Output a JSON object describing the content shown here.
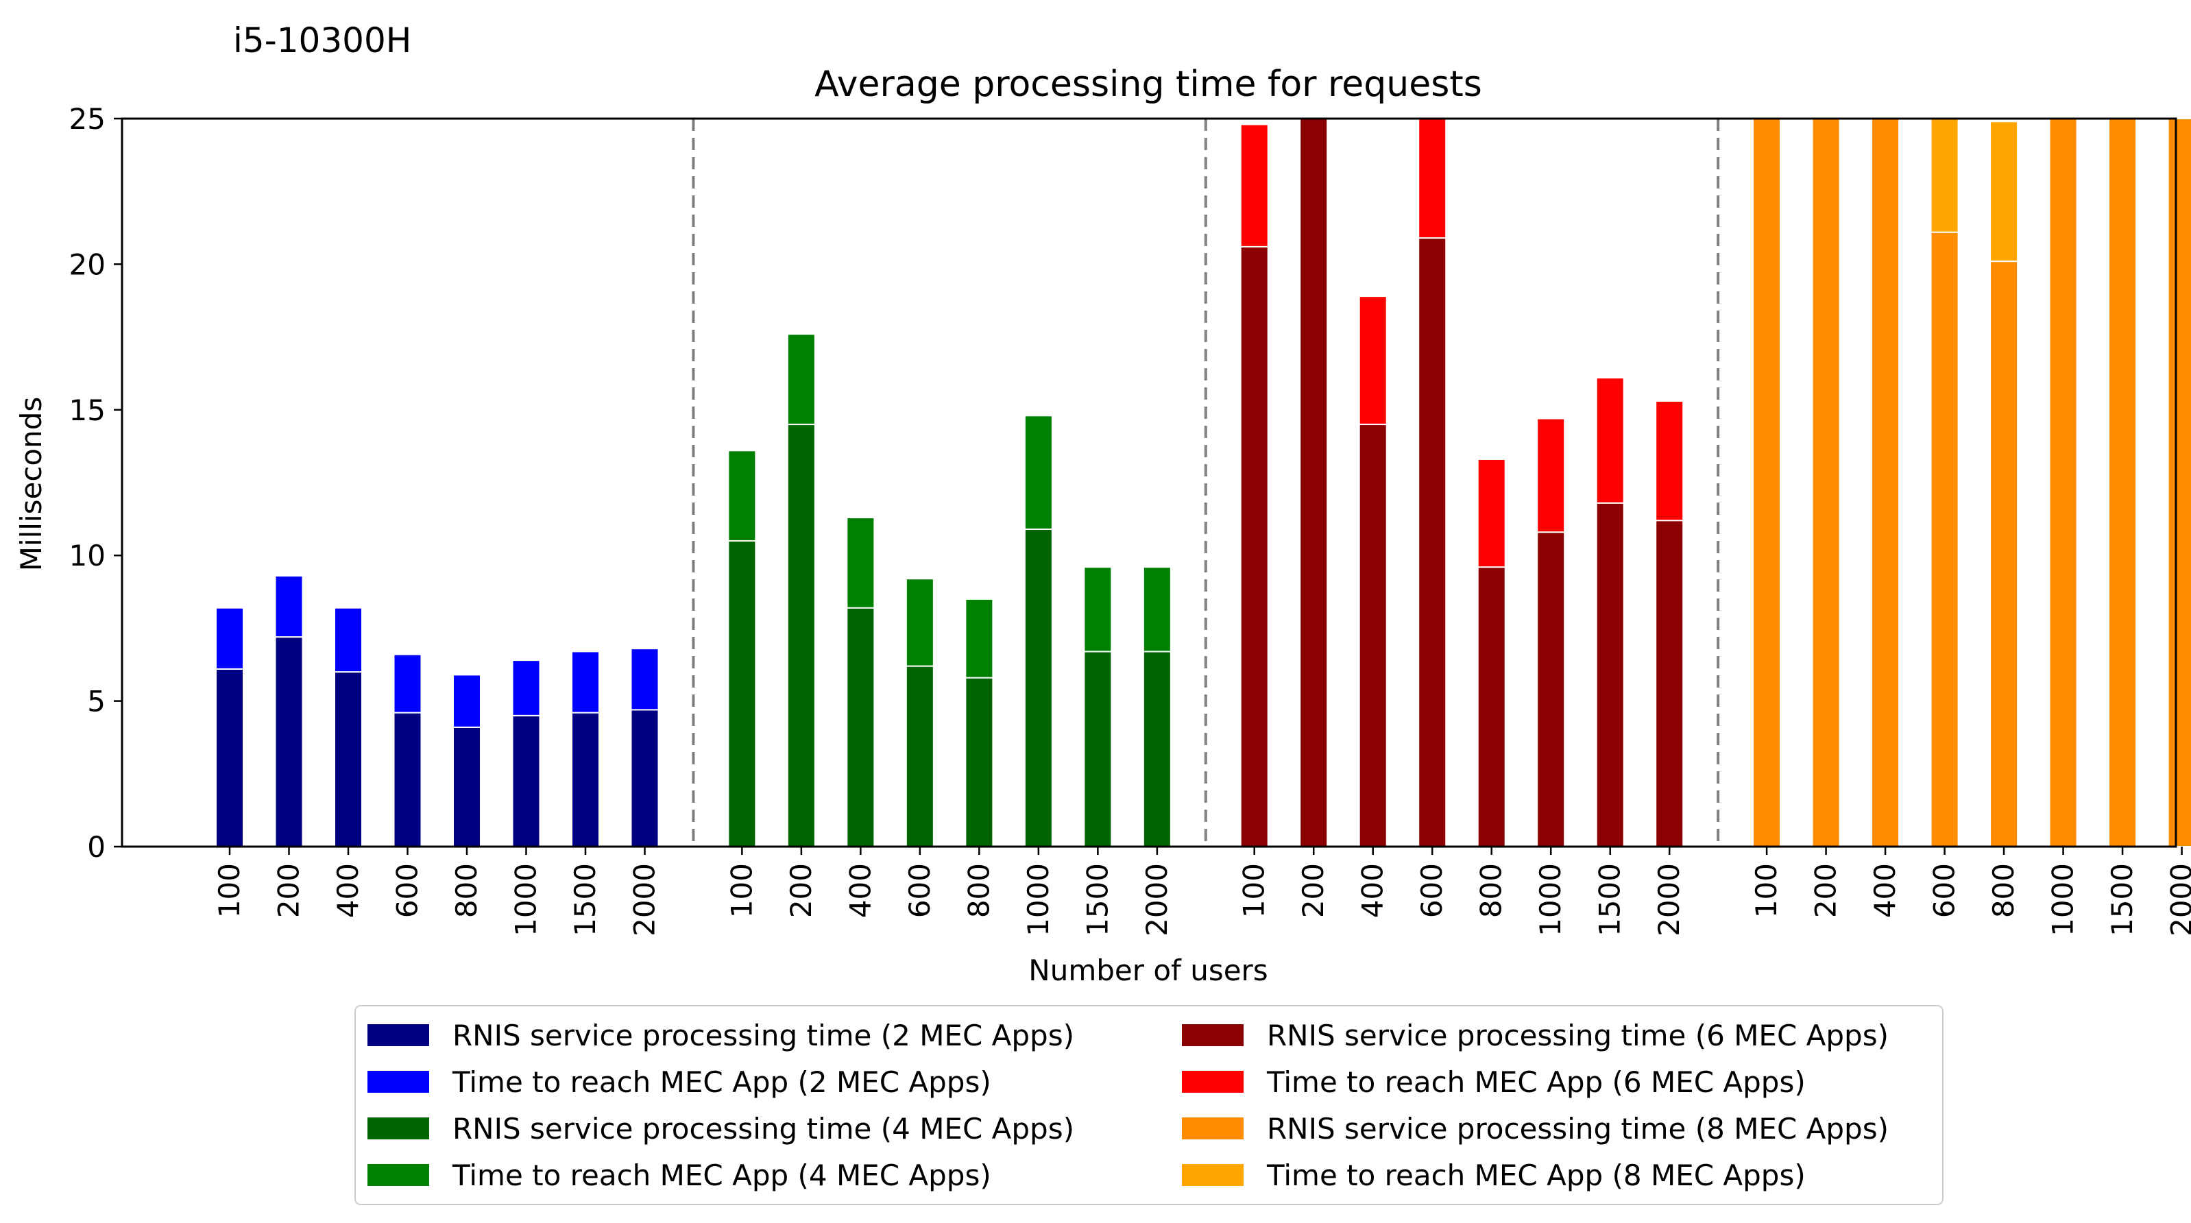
{
  "header": {
    "cpu_label": "i5-10300H"
  },
  "chart_data": {
    "type": "bar",
    "stacked": true,
    "title": "Average processing time for requests",
    "xlabel": "Number of users",
    "ylabel": "Milliseconds",
    "ylim": [
      0,
      25
    ],
    "yticks": [
      0,
      5,
      10,
      15,
      20,
      25
    ],
    "groups": [
      {
        "name": "2 MEC Apps",
        "categories": [
          "100",
          "200",
          "400",
          "600",
          "800",
          "1000",
          "1500",
          "2000"
        ],
        "series": [
          {
            "name": "RNIS service processing time (2 MEC Apps)",
            "color": "#000080",
            "values": [
              6.1,
              7.2,
              6.0,
              4.6,
              4.1,
              4.5,
              4.6,
              4.7
            ]
          },
          {
            "name": "Time to reach MEC App (2 MEC Apps)",
            "color": "#0000ff",
            "values": [
              2.1,
              2.1,
              2.2,
              2.0,
              1.8,
              1.9,
              2.1,
              2.1
            ]
          }
        ]
      },
      {
        "name": "4 MEC Apps",
        "categories": [
          "100",
          "200",
          "400",
          "600",
          "800",
          "1000",
          "1500",
          "2000"
        ],
        "series": [
          {
            "name": "RNIS service processing time (4 MEC Apps)",
            "color": "#006400",
            "values": [
              10.5,
              14.5,
              8.2,
              6.2,
              5.8,
              10.9,
              6.7,
              6.7
            ]
          },
          {
            "name": "Time to reach MEC App (4 MEC Apps)",
            "color": "#008000",
            "values": [
              3.1,
              3.1,
              3.1,
              3.0,
              2.7,
              3.9,
              2.9,
              2.9
            ]
          }
        ]
      },
      {
        "name": "6 MEC Apps",
        "categories": [
          "100",
          "200",
          "400",
          "600",
          "800",
          "1000",
          "1500",
          "2000"
        ],
        "series": [
          {
            "name": "RNIS service processing time (6 MEC Apps)",
            "color": "#8b0000",
            "values": [
              20.6,
              25.0,
              14.5,
              20.9,
              9.6,
              10.8,
              11.8,
              11.2
            ]
          },
          {
            "name": "Time to reach MEC App (6 MEC Apps)",
            "color": "#ff0000",
            "values": [
              4.2,
              0.0,
              4.4,
              4.1,
              3.7,
              3.9,
              4.3,
              4.1
            ]
          }
        ]
      },
      {
        "name": "8 MEC Apps",
        "categories": [
          "100",
          "200",
          "400",
          "600",
          "800",
          "1000",
          "1500",
          "2000"
        ],
        "series": [
          {
            "name": "RNIS service processing time (8 MEC Apps)",
            "color": "#ff8c00",
            "values": [
              25.0,
              25.0,
              25.0,
              21.1,
              20.1,
              25.0,
              25.0,
              25.0
            ]
          },
          {
            "name": "Time to reach MEC App (8 MEC Apps)",
            "color": "#ffa500",
            "values": [
              0.0,
              0.0,
              0.0,
              3.9,
              4.8,
              0.0,
              0.0,
              0.0
            ]
          }
        ]
      }
    ],
    "group_separators": "dashed-gray",
    "legend": {
      "placement": "bottom-center",
      "columns": 2,
      "entries": [
        {
          "label": "RNIS service processing time (2 MEC Apps)",
          "color": "#000080"
        },
        {
          "label": "Time to reach MEC App (2 MEC Apps)",
          "color": "#0000ff"
        },
        {
          "label": "RNIS service processing time (4 MEC Apps)",
          "color": "#006400"
        },
        {
          "label": "Time to reach MEC App (4 MEC Apps)",
          "color": "#008000"
        },
        {
          "label": "RNIS service processing time (6 MEC Apps)",
          "color": "#8b0000"
        },
        {
          "label": "Time to reach MEC App (6 MEC Apps)",
          "color": "#ff0000"
        },
        {
          "label": "RNIS service processing time (8 MEC Apps)",
          "color": "#ff8c00"
        },
        {
          "label": "Time to reach MEC App (8 MEC Apps)",
          "color": "#ffa500"
        }
      ]
    }
  }
}
